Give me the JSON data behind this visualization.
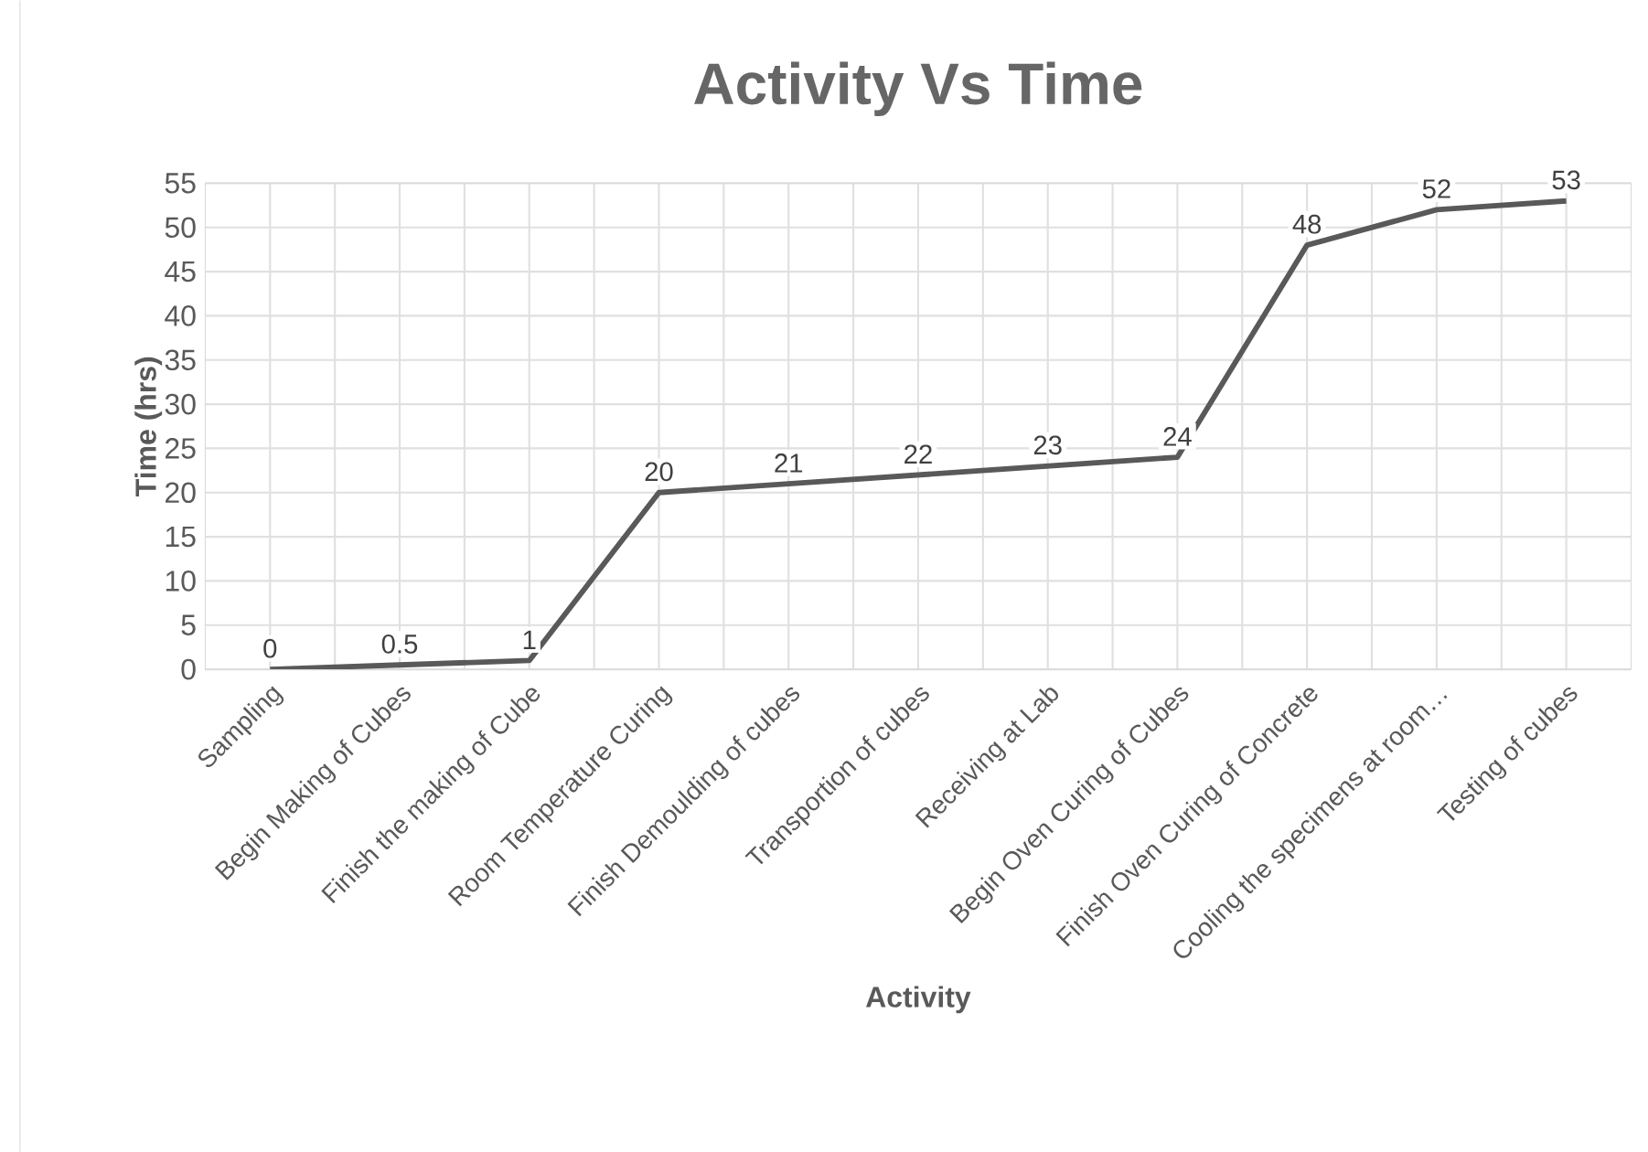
{
  "chart_data": {
    "type": "line",
    "title": "Activity Vs Time",
    "xlabel": "Activity",
    "ylabel": "Time (hrs)",
    "categories": [
      "Sampling",
      "Begin Making of Cubes",
      "Finish the making of  Cube",
      "Room Temperature Curing",
      "Finish Demoulding of cubes",
      "Transportion of cubes",
      "Receiving at Lab",
      "Begin Oven Curing of Cubes",
      "Finish Oven Curing of Concrete",
      "Cooling the specimens at room…",
      "Testing of cubes"
    ],
    "series": [
      {
        "color": "#595959",
        "values": [
          0,
          0.5,
          1,
          20,
          21,
          22,
          23,
          24,
          48,
          52,
          53
        ]
      }
    ],
    "ylim": [
      0,
      55
    ],
    "yticks": [
      0,
      5,
      10,
      15,
      20,
      25,
      30,
      35,
      40,
      45,
      50,
      55
    ],
    "grid": true,
    "data_labels": true,
    "marker": "none",
    "line_style": "solid"
  }
}
